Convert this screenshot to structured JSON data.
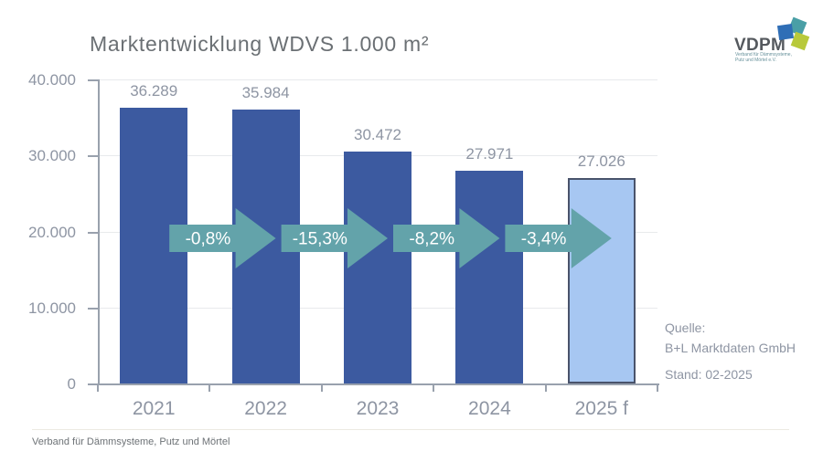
{
  "title": "Marktentwicklung WDVS 1.000 m²",
  "chart_data": {
    "type": "bar",
    "categories": [
      "2021",
      "2022",
      "2023",
      "2024",
      "2025 f"
    ],
    "values": [
      36289,
      35984,
      30472,
      27971,
      27026
    ],
    "value_labels": [
      "36.289",
      "35.984",
      "30.472",
      "27.971",
      "27.026"
    ],
    "y_tick_labels": [
      "40.000",
      "30.000",
      "20.000",
      "10.000",
      "0"
    ],
    "ylim": [
      0,
      40000
    ],
    "grid": true,
    "legend": false,
    "arrows": [
      {
        "label": "-0,8%"
      },
      {
        "label": "-15,3%"
      },
      {
        "label": "-8,2%"
      },
      {
        "label": "-3,4%"
      }
    ],
    "colors": {
      "bar": "#3c5aa0",
      "forecast_bar_fill": "#a7c7f2",
      "forecast_bar_border": "#49536b",
      "arrow": "#63a3aa",
      "arrow_text": "#ffffff"
    }
  },
  "source": {
    "label": "Quelle:",
    "name": "B+L Marktdaten GmbH",
    "stand": "Stand: 02-2025"
  },
  "footer": "Verband für Dämmsysteme, Putz und Mörtel",
  "logo": {
    "name": "VDPM",
    "line1": "Verband für Dämmsysteme,",
    "line2": "Putz und Mörtel e.V.",
    "colors": {
      "blue": "#2f6eb6",
      "teal": "#4a9fa6",
      "lime": "#b8c93b"
    }
  }
}
